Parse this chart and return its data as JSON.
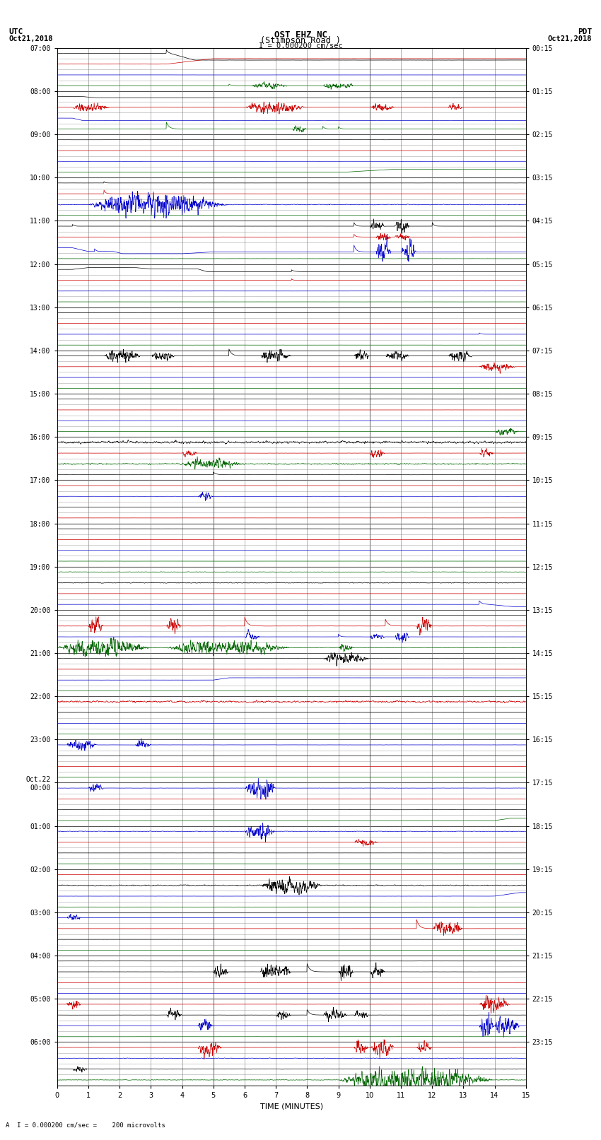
{
  "title_line1": "OST EHZ NC",
  "title_line2": "(Stimpson Road )",
  "scale_label": "I = 0.000200 cm/sec",
  "bottom_label": "A  I = 0.000200 cm/sec =    200 microvolts",
  "xlabel": "TIME (MINUTES)",
  "bg_color": "#ffffff",
  "grid_color": "#888888",
  "trace_colors": [
    "#000000",
    "#cc0000",
    "#0000cc",
    "#006600"
  ],
  "left_times_labeled": [
    "07:00",
    "08:00",
    "09:00",
    "10:00",
    "11:00",
    "12:00",
    "13:00",
    "14:00",
    "15:00",
    "16:00",
    "17:00",
    "18:00",
    "19:00",
    "20:00",
    "21:00",
    "22:00",
    "23:00",
    "Oct.22\n00:00",
    "01:00",
    "02:00",
    "03:00",
    "04:00",
    "05:00",
    "06:00"
  ],
  "right_times_labeled": [
    "00:15",
    "01:15",
    "02:15",
    "03:15",
    "04:15",
    "05:15",
    "06:15",
    "07:15",
    "08:15",
    "09:15",
    "10:15",
    "11:15",
    "12:15",
    "13:15",
    "14:15",
    "15:15",
    "16:15",
    "17:15",
    "18:15",
    "19:15",
    "20:15",
    "21:15",
    "22:15",
    "23:15"
  ],
  "n_rows": 96,
  "n_hour_blocks": 24,
  "rows_per_block": 4,
  "figsize": [
    8.5,
    16.13
  ],
  "dpi": 100
}
